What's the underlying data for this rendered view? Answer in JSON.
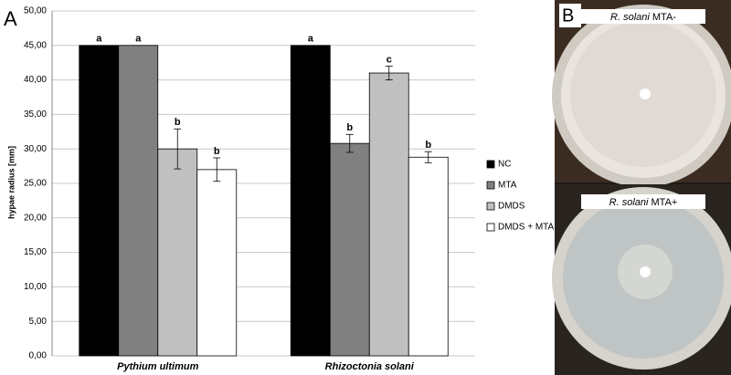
{
  "chart_data": {
    "type": "bar",
    "ylabel": "hypae radius [mm]",
    "categories": [
      "Pythium ultimum",
      "Rhizoctonia solani"
    ],
    "series": [
      {
        "name": "NC",
        "color": "#000000",
        "values": [
          45,
          45
        ],
        "errors": [
          0,
          0
        ],
        "letters": [
          "a",
          "a"
        ]
      },
      {
        "name": "MTA",
        "color": "#808080",
        "values": [
          45,
          30.8
        ],
        "errors": [
          0,
          1.3
        ],
        "letters": [
          "a",
          "b"
        ]
      },
      {
        "name": "DMDS",
        "color": "#c0c0c0",
        "values": [
          30,
          41
        ],
        "errors": [
          2.9,
          1
        ],
        "letters": [
          "b",
          "c"
        ]
      },
      {
        "name": "DMDS + MTA",
        "color": "#ffffff",
        "values": [
          27,
          28.8
        ],
        "errors": [
          1.7,
          0.8
        ],
        "letters": [
          "b",
          "b"
        ]
      }
    ],
    "ylim": [
      0,
      50
    ],
    "yticks": [
      {
        "value": 0,
        "label": "0,00"
      },
      {
        "value": 5,
        "label": "5,00"
      },
      {
        "value": 10,
        "label": "10,00"
      },
      {
        "value": 15,
        "label": "15,00"
      },
      {
        "value": 20,
        "label": "20,00"
      },
      {
        "value": 25,
        "label": "25,00"
      },
      {
        "value": 30,
        "label": "30,00"
      },
      {
        "value": 35,
        "label": "35,00"
      },
      {
        "value": 40,
        "label": "40,00"
      },
      {
        "value": 45,
        "label": "45,00"
      },
      {
        "value": 50,
        "label": "50,00"
      }
    ],
    "grid": true,
    "legend": "right"
  },
  "figure": {
    "panel_a": "A",
    "panel_b": "B",
    "photos": [
      {
        "organism": "R. solani",
        "treatment": "MTA-"
      },
      {
        "organism": "R. solani",
        "treatment": "MTA+"
      }
    ]
  }
}
